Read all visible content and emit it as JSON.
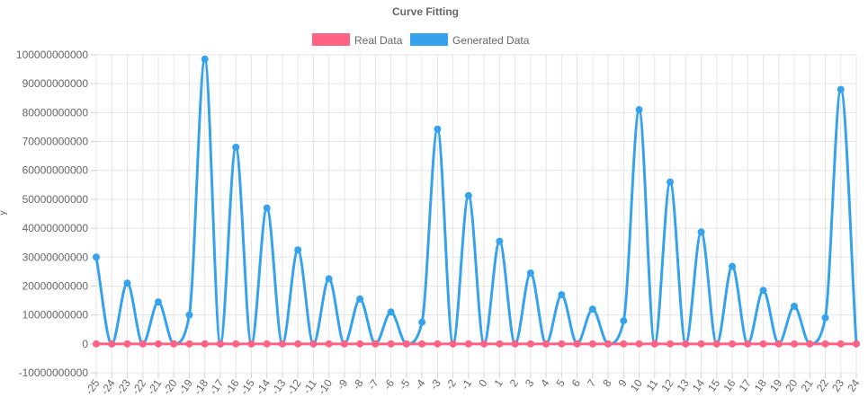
{
  "chart_data": {
    "type": "line",
    "title": "Curve Fitting",
    "xlabel": "",
    "ylabel": "y",
    "ylim": [
      -10000000000,
      100000000000
    ],
    "y_ticks": [
      -10000000000,
      0,
      10000000000,
      20000000000,
      30000000000,
      40000000000,
      50000000000,
      60000000000,
      70000000000,
      80000000000,
      90000000000,
      100000000000
    ],
    "grid": true,
    "legend_position": "top",
    "categories": [
      "-25",
      "-24",
      "-23",
      "-22",
      "-21",
      "-20",
      "-19",
      "-18",
      "-17",
      "-16",
      "-15",
      "-14",
      "-13",
      "-12",
      "-11",
      "-10",
      "-9",
      "-8",
      "-7",
      "-6",
      "-5",
      "-4",
      "-3",
      "-2",
      "-1",
      "0",
      "1",
      "2",
      "3",
      "4",
      "5",
      "6",
      "7",
      "8",
      "9",
      "10",
      "11",
      "12",
      "13",
      "14",
      "15",
      "16",
      "17",
      "18",
      "19",
      "20",
      "21",
      "22",
      "23",
      "24"
    ],
    "series": [
      {
        "name": "Real Data",
        "color": "#ff6384",
        "values": [
          0,
          0,
          0,
          0,
          0,
          0,
          0,
          0,
          0,
          0,
          0,
          0,
          0,
          0,
          0,
          0,
          0,
          0,
          0,
          0,
          0,
          0,
          0,
          0,
          0,
          0,
          0,
          0,
          0,
          0,
          0,
          0,
          0,
          0,
          0,
          0,
          0,
          0,
          0,
          0,
          0,
          0,
          0,
          0,
          0,
          0,
          0,
          0,
          0,
          0
        ]
      },
      {
        "name": "Generated Data",
        "color": "#36a2eb",
        "values": [
          30000000000,
          0,
          21000000000,
          0,
          14500000000,
          0,
          10000000000,
          98500000000,
          0,
          68000000000,
          0,
          47000000000,
          0,
          32500000000,
          0,
          22500000000,
          0,
          15500000000,
          0,
          11000000000,
          0,
          7500000000,
          74300000000,
          0,
          51300000000,
          0,
          35500000000,
          0,
          24500000000,
          0,
          17000000000,
          0,
          12000000000,
          0,
          8000000000,
          81000000000,
          0,
          56000000000,
          0,
          38700000000,
          0,
          26800000000,
          0,
          18500000000,
          0,
          13000000000,
          0,
          9000000000,
          88000000000,
          0
        ]
      }
    ]
  }
}
